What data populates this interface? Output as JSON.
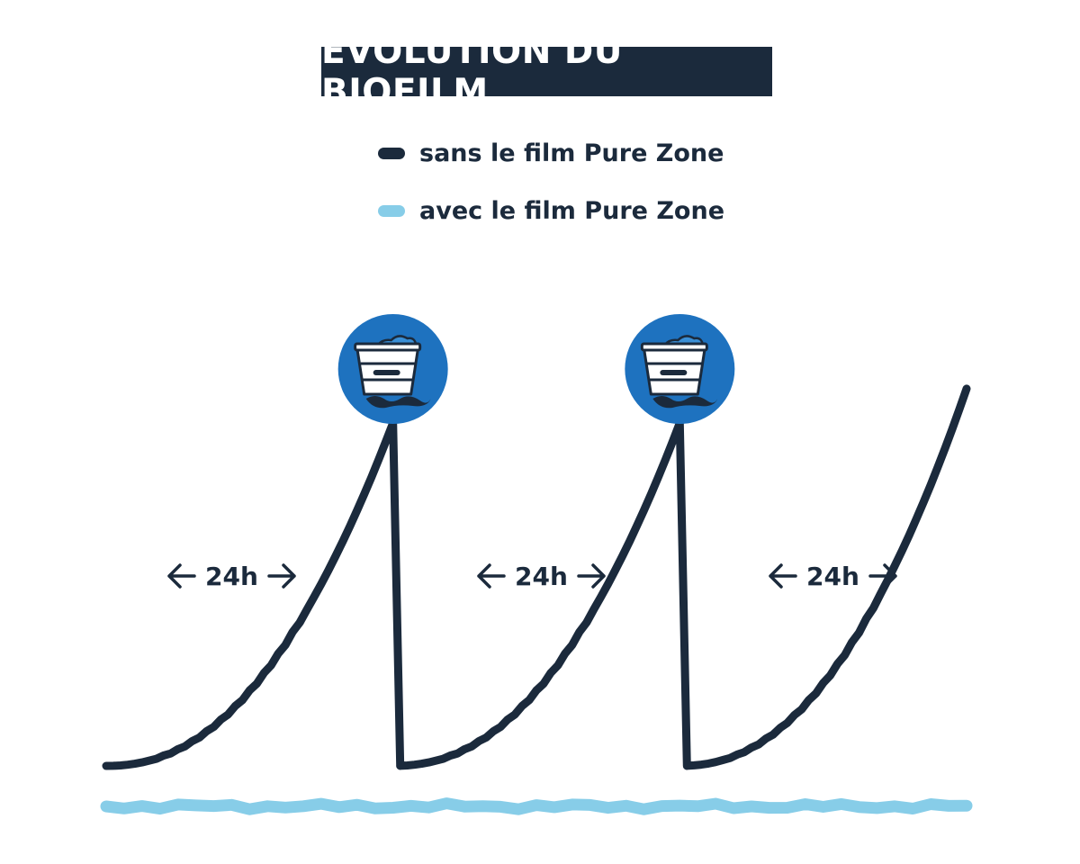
{
  "title": "ÉVOLUTION DU BIOFILM",
  "legend": {
    "without": {
      "label": "sans le film Pure Zone",
      "color": "#1b2a3c"
    },
    "with": {
      "label": "avec le film Pure Zone",
      "color": "#87cde8"
    }
  },
  "intervals": [
    {
      "label": "24h"
    },
    {
      "label": "24h"
    },
    {
      "label": "24h"
    }
  ],
  "icons": {
    "cleaning": "bucket-icon",
    "arrow_left": "arrow-left-icon",
    "arrow_right": "arrow-right-icon"
  },
  "colors": {
    "dark": "#1b2a3c",
    "light_blue": "#87cde8",
    "icon_circle": "#1e72bf"
  },
  "chart_data": {
    "type": "line",
    "title": "ÉVOLUTION DU BIOFILM",
    "xlabel": "",
    "ylabel": "",
    "series": [
      {
        "name": "sans le film Pure Zone",
        "color": "#1b2a3c",
        "cycles": [
          {
            "start_h": 0,
            "end_h": 24,
            "start_level": 0,
            "end_level": 1.0,
            "cleaned_at_end": true
          },
          {
            "start_h": 24,
            "end_h": 48,
            "start_level": 0,
            "end_level": 1.0,
            "cleaned_at_end": true
          },
          {
            "start_h": 48,
            "end_h": 72,
            "start_level": 0,
            "end_level": 1.1,
            "cleaned_at_end": false
          }
        ]
      },
      {
        "name": "avec le film Pure Zone",
        "color": "#87cde8",
        "level": 0
      }
    ],
    "cleaning_events_h": [
      24,
      48
    ],
    "xlim": [
      0,
      72
    ],
    "grid": false,
    "legend_position": "top-center"
  }
}
